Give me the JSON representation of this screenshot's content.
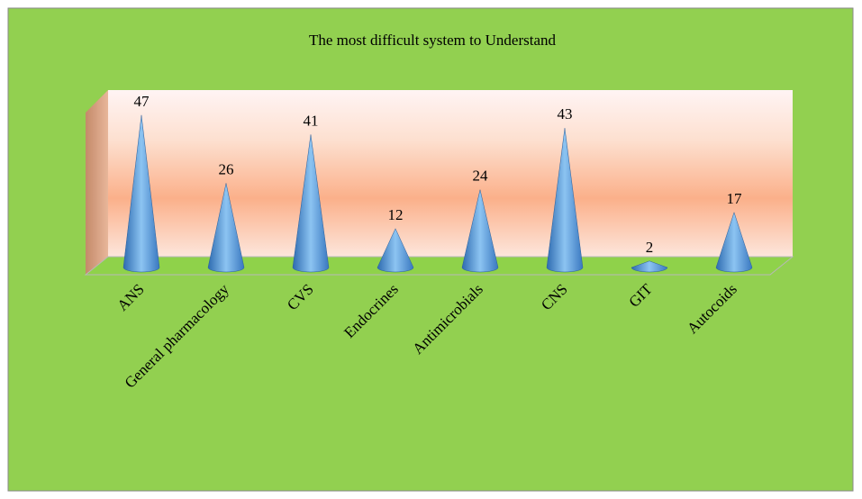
{
  "chart_data": {
    "type": "cone",
    "title": "The most difficult system to Understand",
    "categories": [
      "ANS",
      "General pharmacology",
      "CVS",
      "Endocrines",
      "Antimicrobials",
      "CNS",
      "GIT",
      "Autocoids"
    ],
    "values": [
      47,
      26,
      41,
      12,
      24,
      43,
      2,
      17
    ],
    "color": "#4f8fd6"
  }
}
